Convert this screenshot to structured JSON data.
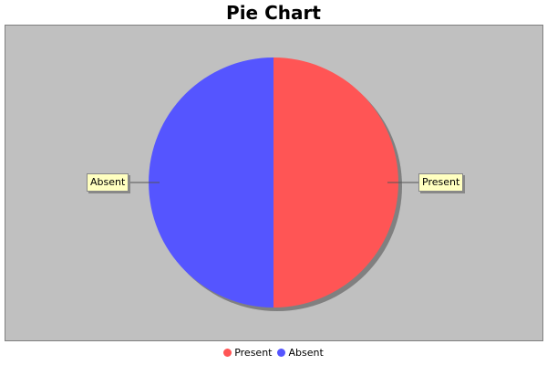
{
  "chart_data": {
    "type": "pie",
    "title": "Pie Chart",
    "slices": [
      {
        "label": "Present",
        "value": 50,
        "color": "#ff5555"
      },
      {
        "label": "Absent",
        "value": 50,
        "color": "#5555ff"
      }
    ],
    "legend_placement": "bottom"
  },
  "colors": {
    "plot_background": "#c0c0c0",
    "label_background": "#ffffc0"
  }
}
